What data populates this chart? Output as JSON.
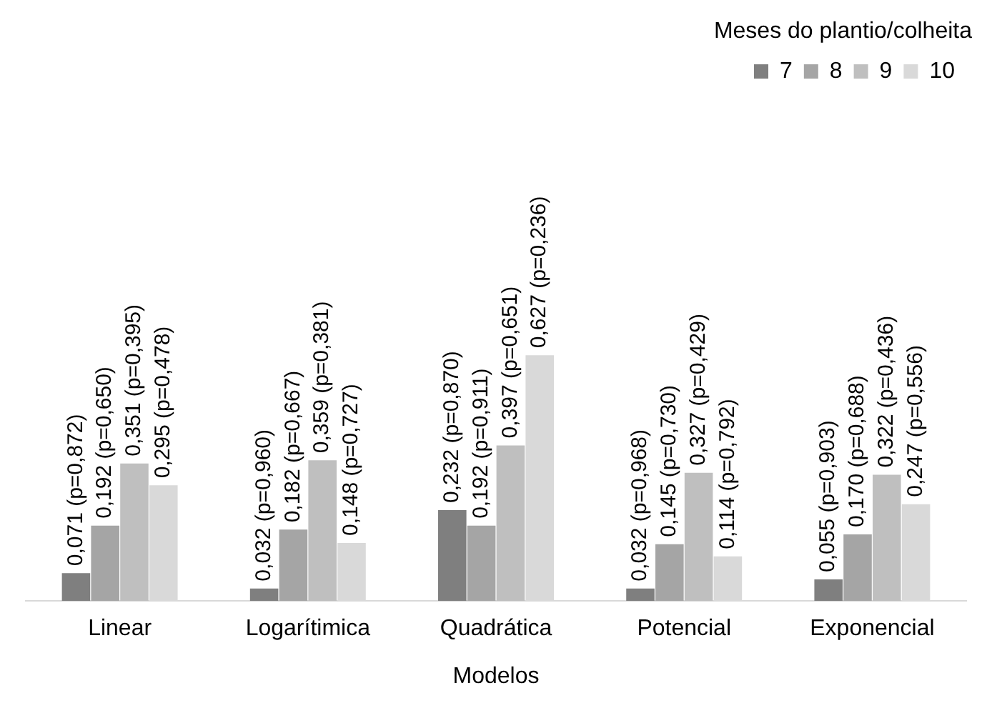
{
  "chart_data": {
    "type": "bar",
    "xlabel": "Modelos",
    "legend_title": "Meses do plantio/colheita",
    "legend": "top right",
    "grid": false,
    "categories": [
      "Linear",
      "Logarítimica",
      "Quadrática",
      "Potencial",
      "Exponencial"
    ],
    "series": [
      {
        "name": "7",
        "color": "#7f7f7f",
        "values": [
          0.071,
          0.032,
          0.232,
          0.032,
          0.055
        ],
        "value_labels": [
          "0,071 (p=0,872)",
          "0,032 (p=0,960)",
          "0,232 (p=0,870)",
          "0,032 (p=0,968)",
          "0,055 (p=0,903)"
        ]
      },
      {
        "name": "8",
        "color": "#a5a5a5",
        "values": [
          0.192,
          0.182,
          0.192,
          0.145,
          0.17
        ],
        "value_labels": [
          "0,192 (p=0,650)",
          "0,182 (p=0,667)",
          "0,192 (p=0,911)",
          "0,145 (p=0,730)",
          "0,170 (p=0,688)"
        ]
      },
      {
        "name": "9",
        "color": "#bfbfbf",
        "values": [
          0.351,
          0.359,
          0.397,
          0.327,
          0.322
        ],
        "value_labels": [
          "0,351 (p=0,395)",
          "0,359 (p=0,381)",
          "0,397 (p=0,651)",
          "0,327 (p=0,429)",
          "0,322 (p=0,436)"
        ]
      },
      {
        "name": "10",
        "color": "#d9d9d9",
        "values": [
          0.295,
          0.148,
          0.627,
          0.114,
          0.247
        ],
        "value_labels": [
          "0,295 (p=0,478)",
          "0,148 (p=0,727)",
          "0,627 (p=0,236)",
          "0,114 (p=0,792)",
          "0,247 (p=0,556)"
        ]
      }
    ]
  }
}
